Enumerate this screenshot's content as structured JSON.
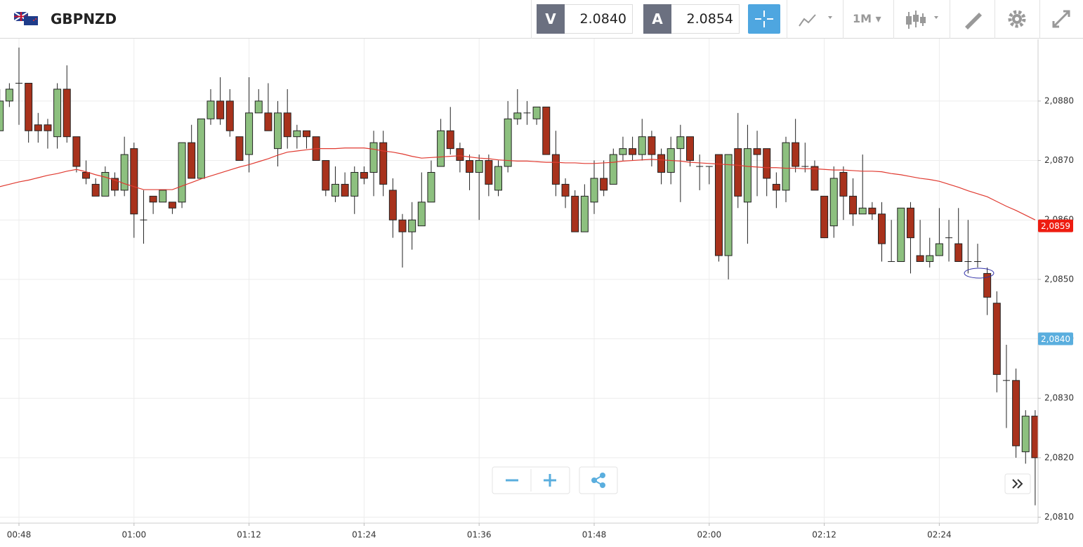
{
  "toolbar": {
    "symbol": "GBPNZD",
    "bid_label": "V",
    "bid": "2.0840",
    "ask_label": "A",
    "ask": "2.0854",
    "timeframe": "1M"
  },
  "chart_data": {
    "type": "candlestick",
    "categories": [
      null,
      null,
      "00:48",
      null,
      null,
      null,
      null,
      null,
      null,
      null,
      null,
      null,
      null,
      null,
      "01:00",
      null,
      null,
      null,
      null,
      null,
      null,
      null,
      null,
      null,
      null,
      null,
      "01:12",
      null,
      null,
      null,
      null,
      null,
      null,
      null,
      null,
      null,
      null,
      null,
      "01:24",
      null,
      null,
      null,
      null,
      null,
      null,
      null,
      null,
      null,
      null,
      null,
      "01:36",
      null,
      null,
      null,
      null,
      null,
      null,
      null,
      null,
      null,
      null,
      null,
      "01:48",
      null,
      null,
      null,
      null,
      null,
      null,
      null,
      null,
      null,
      null,
      null,
      "02:00",
      null,
      null,
      null,
      null,
      null,
      null,
      null,
      null,
      null,
      null,
      null,
      "02:12",
      null,
      null,
      null,
      null,
      null,
      null,
      null,
      null,
      null,
      null,
      null,
      "02:24",
      null,
      null,
      null,
      null,
      null,
      null,
      null,
      null,
      null,
      null
    ],
    "open": [
      2.0875,
      2.088,
      2.0883,
      2.0883,
      2.0876,
      2.0876,
      2.0874,
      2.0882,
      2.0874,
      2.0868,
      2.0866,
      2.0864,
      2.0867,
      2.0865,
      2.0872,
      2.086,
      2.0864,
      2.0863,
      2.0863,
      2.0863,
      2.0873,
      2.0867,
      2.0877,
      2.088,
      2.088,
      2.0874,
      2.0871,
      2.0878,
      2.0878,
      2.0872,
      2.0878,
      2.0874,
      2.0875,
      2.0874,
      2.087,
      2.0864,
      2.0866,
      2.0864,
      2.0868,
      2.0868,
      2.0873,
      2.0865,
      2.086,
      2.0858,
      2.0859,
      2.0863,
      2.0869,
      2.0875,
      2.0872,
      2.087,
      2.0868,
      2.087,
      2.0865,
      2.0869,
      2.0877,
      2.0878,
      2.0877,
      2.0879,
      2.0871,
      2.0866,
      2.0864,
      2.0858,
      2.0863,
      2.0867,
      2.0866,
      2.0871,
      2.0872,
      2.0871,
      2.0874,
      2.0871,
      2.0868,
      2.0872,
      2.0874,
      2.0869,
      2.0869,
      2.0871,
      2.0854,
      2.0872,
      2.0863,
      2.0872,
      2.0872,
      2.0866,
      2.0865,
      2.0873,
      2.0869,
      2.0869,
      2.0864,
      2.0859,
      2.0868,
      2.0864,
      2.0861,
      2.0862,
      2.0861,
      2.0853,
      2.0853,
      2.0862,
      2.0854,
      2.0853,
      2.0854,
      2.0857,
      2.0856,
      2.0853,
      2.0853,
      2.0851,
      2.0846,
      2.0833,
      2.0833,
      2.0821,
      2.0827
    ],
    "high": [
      2.0882,
      2.0883,
      2.0889,
      2.0883,
      2.0878,
      2.0877,
      2.0883,
      2.0886,
      2.0874,
      2.087,
      2.0867,
      2.0869,
      2.0868,
      2.0874,
      2.0873,
      2.0865,
      2.0864,
      2.0865,
      2.0863,
      2.0873,
      2.0876,
      2.0877,
      2.0882,
      2.0884,
      2.0882,
      2.0874,
      2.0884,
      2.0882,
      2.0883,
      2.088,
      2.0882,
      2.0876,
      2.0875,
      2.0874,
      2.087,
      2.0869,
      2.0868,
      2.0869,
      2.0869,
      2.0875,
      2.0875,
      2.0867,
      2.0861,
      2.0863,
      2.0868,
      2.087,
      2.0877,
      2.0879,
      2.0873,
      2.0871,
      2.0871,
      2.0871,
      2.087,
      2.088,
      2.0882,
      2.088,
      2.0879,
      2.0879,
      2.0875,
      2.0867,
      2.0865,
      2.0866,
      2.087,
      2.087,
      2.0872,
      2.0874,
      2.0874,
      2.0877,
      2.0875,
      2.0872,
      2.0874,
      2.0876,
      2.0874,
      2.0871,
      2.0869,
      2.0871,
      2.0871,
      2.0878,
      2.0876,
      2.0875,
      2.0872,
      2.0868,
      2.0874,
      2.0877,
      2.0873,
      2.087,
      2.0864,
      2.0869,
      2.0869,
      2.0867,
      2.0871,
      2.0863,
      2.0863,
      2.086,
      2.0862,
      2.0863,
      2.086,
      2.0857,
      2.0862,
      2.086,
      2.0862,
      2.086,
      2.0856,
      2.0852,
      2.0848,
      2.0839,
      2.0835,
      2.0828,
      2.0828
    ],
    "low": [
      2.0875,
      2.0879,
      2.0876,
      2.0873,
      2.0873,
      2.0872,
      2.0872,
      2.0873,
      2.0868,
      2.0866,
      2.0864,
      2.0864,
      2.0864,
      2.0864,
      2.0857,
      2.0856,
      2.0861,
      2.0863,
      2.0861,
      2.0862,
      2.0867,
      2.0867,
      2.0876,
      2.0876,
      2.0874,
      2.087,
      2.0868,
      2.0878,
      2.0875,
      2.0869,
      2.0872,
      2.0872,
      2.0872,
      2.087,
      2.0864,
      2.0863,
      2.0864,
      2.0861,
      2.0866,
      2.0864,
      2.0864,
      2.0857,
      2.0852,
      2.0855,
      2.0859,
      2.0863,
      2.0869,
      2.0871,
      2.0868,
      2.0865,
      2.086,
      2.0864,
      2.0864,
      2.0868,
      2.0876,
      2.0876,
      2.0876,
      2.0871,
      2.0864,
      2.0862,
      2.0858,
      2.0858,
      2.0861,
      2.0864,
      2.0866,
      2.087,
      2.087,
      2.087,
      2.0869,
      2.0866,
      2.0866,
      2.0863,
      2.0869,
      2.0865,
      2.0866,
      2.0853,
      2.085,
      2.0862,
      2.0856,
      2.0864,
      2.0864,
      2.0862,
      2.0863,
      2.0868,
      2.0868,
      2.0865,
      2.0857,
      2.0857,
      2.086,
      2.0859,
      2.0861,
      2.086,
      2.0853,
      2.0853,
      2.0853,
      2.0851,
      2.0853,
      2.0852,
      2.0854,
      2.0853,
      2.0853,
      2.0851,
      2.0852,
      2.0844,
      2.0831,
      2.0825,
      2.082,
      2.0819,
      2.0812
    ],
    "close": [
      2.088,
      2.0882,
      2.0883,
      2.0875,
      2.0875,
      2.0875,
      2.0882,
      2.0874,
      2.0869,
      2.0867,
      2.0864,
      2.0868,
      2.0865,
      2.0871,
      2.0861,
      2.086,
      2.0863,
      2.0865,
      2.0862,
      2.0873,
      2.0867,
      2.0877,
      2.088,
      2.0877,
      2.0875,
      2.087,
      2.0878,
      2.088,
      2.0875,
      2.0878,
      2.0874,
      2.0875,
      2.0874,
      2.087,
      2.0865,
      2.0866,
      2.0864,
      2.0868,
      2.0867,
      2.0873,
      2.0866,
      2.086,
      2.0858,
      2.086,
      2.0863,
      2.0868,
      2.0875,
      2.0872,
      2.087,
      2.0868,
      2.087,
      2.0866,
      2.0869,
      2.0877,
      2.0878,
      2.0878,
      2.0879,
      2.0871,
      2.0866,
      2.0864,
      2.0858,
      2.0864,
      2.0867,
      2.0865,
      2.0871,
      2.0872,
      2.0871,
      2.0874,
      2.0871,
      2.0868,
      2.0872,
      2.0874,
      2.087,
      2.0869,
      2.0869,
      2.0854,
      2.0871,
      2.0864,
      2.0872,
      2.0871,
      2.0867,
      2.0865,
      2.0873,
      2.0869,
      2.0869,
      2.0865,
      2.0857,
      2.0867,
      2.0864,
      2.0861,
      2.0862,
      2.0861,
      2.0856,
      2.0853,
      2.0862,
      2.0857,
      2.0853,
      2.0854,
      2.0856,
      2.0857,
      2.0853,
      2.0853,
      2.0853,
      2.0847,
      2.0834,
      2.0833,
      2.0822,
      2.0827,
      2.082
    ],
    "up_color": "#8dc07f",
    "down_color": "#a8321c",
    "ma": {
      "color": "#e03a30",
      "values": [
        2.08656,
        2.0866,
        2.08664,
        2.08667,
        2.08671,
        2.08675,
        2.08678,
        2.08682,
        2.08685,
        2.08681,
        2.08676,
        2.08672,
        2.08667,
        2.08661,
        2.08656,
        2.08651,
        2.08651,
        2.08651,
        2.08651,
        2.08657,
        2.08663,
        2.08669,
        2.08674,
        2.08679,
        2.08684,
        2.08689,
        2.08693,
        2.08698,
        2.08703,
        2.08709,
        2.08714,
        2.08716,
        2.08718,
        2.0872,
        2.0872,
        2.0872,
        2.08721,
        2.08721,
        2.08721,
        2.08719,
        2.08716,
        2.08714,
        2.08711,
        2.08707,
        2.08704,
        2.08705,
        2.08706,
        2.08707,
        2.08708,
        2.08706,
        2.08704,
        2.08703,
        2.08701,
        2.087,
        2.08699,
        2.08699,
        2.08698,
        2.08697,
        2.08697,
        2.08696,
        2.08696,
        2.08695,
        2.08695,
        2.08696,
        2.08697,
        2.08699,
        2.087,
        2.08701,
        2.08702,
        2.08701,
        2.087,
        2.08699,
        2.08697,
        2.08696,
        2.08695,
        2.08694,
        2.08693,
        2.08692,
        2.0869,
        2.08689,
        2.08688,
        2.08688,
        2.08687,
        2.08687,
        2.08686,
        2.08686,
        2.08685,
        2.08684,
        2.08684,
        2.08683,
        2.08682,
        2.08682,
        2.08681,
        2.08678,
        2.08676,
        2.08673,
        2.0867,
        2.08668,
        2.08665,
        2.0866,
        2.08655,
        2.08649,
        2.08644,
        2.08639,
        2.08631,
        2.08623,
        2.08616,
        2.08608,
        2.086
      ]
    },
    "ylim": [
      2.0809,
      2.08905
    ],
    "yticks": [
      {
        "value": 2.081,
        "label": "2,0810"
      },
      {
        "value": 2.082,
        "label": "2,0820"
      },
      {
        "value": 2.083,
        "label": "2,0830"
      },
      {
        "value": 2.084,
        "label": "2,0840"
      },
      {
        "value": 2.085,
        "label": "2,0850"
      },
      {
        "value": 2.086,
        "label": "2,0860"
      },
      {
        "value": 2.087,
        "label": "2,0870"
      },
      {
        "value": 2.088,
        "label": "2,0880"
      }
    ],
    "price_markers": [
      {
        "value": 2.0859,
        "label": "2,0859",
        "color": "#ee1c10"
      },
      {
        "value": 2.084,
        "label": "2,0840",
        "color": "#5aaede"
      }
    ],
    "grid": true
  }
}
